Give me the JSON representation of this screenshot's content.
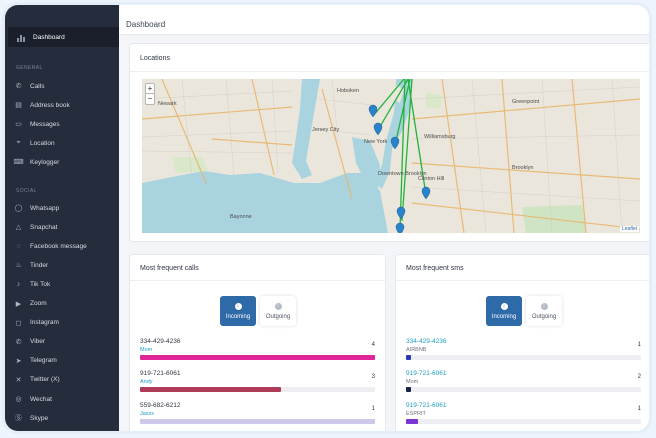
{
  "sidebar": {
    "active": "Dashboard",
    "general_label": "GENERAL",
    "social_label": "SOCIAL",
    "general_items": [
      {
        "label": "Calls",
        "icon": "phone-icon"
      },
      {
        "label": "Address book",
        "icon": "address-book-icon"
      },
      {
        "label": "Messages",
        "icon": "message-icon"
      },
      {
        "label": "Location",
        "icon": "location-pin-icon"
      },
      {
        "label": "Keylogger",
        "icon": "keyboard-icon"
      }
    ],
    "social_items": [
      {
        "label": "Whatsapp",
        "icon": "whatsapp-icon"
      },
      {
        "label": "Snapchat",
        "icon": "snapchat-icon"
      },
      {
        "label": "Facebook message",
        "icon": "messenger-icon"
      },
      {
        "label": "Tinder",
        "icon": "tinder-icon"
      },
      {
        "label": "Tik Tok",
        "icon": "tiktok-icon"
      },
      {
        "label": "Zoom",
        "icon": "zoom-icon"
      },
      {
        "label": "Instagram",
        "icon": "instagram-icon"
      },
      {
        "label": "Viber",
        "icon": "viber-icon"
      },
      {
        "label": "Telegram",
        "icon": "telegram-icon"
      },
      {
        "label": "Twitter (X)",
        "icon": "x-icon"
      },
      {
        "label": "Wechat",
        "icon": "wechat-icon"
      },
      {
        "label": "Skype",
        "icon": "skype-icon"
      }
    ]
  },
  "header": {
    "title": "Dashboard"
  },
  "locations": {
    "title": "Locations",
    "zoom_in": "+",
    "zoom_out": "−",
    "attribution": "Leaflet",
    "place_labels": [
      "Hoboken",
      "Newark",
      "Jersey City",
      "New York",
      "Bayonne",
      "Williamsburg",
      "Greenpoint",
      "Clinton Hill",
      "Downtown Brooklyn",
      "Brooklyn"
    ]
  },
  "calls": {
    "title": "Most frequent calls",
    "tab_incoming": "Incoming",
    "tab_outgoing": "Outgoing",
    "active_tab": "Incoming",
    "rows": [
      {
        "number": "334-429-4236",
        "name": "Mom",
        "count": "4",
        "fraction": 1.0,
        "color": "#e0259a"
      },
      {
        "number": "919-721-6061",
        "name": "Andy",
        "count": "3",
        "fraction": 0.6,
        "color": "#b03b58"
      },
      {
        "number": "559-682-6212",
        "name": "Jaxxx",
        "count": "1",
        "fraction": 1.0,
        "color": "#cfc8e8"
      }
    ]
  },
  "sms": {
    "title": "Most frequent sms",
    "tab_incoming": "Incoming",
    "tab_outgoing": "Outgoing",
    "active_tab": "Incoming",
    "rows": [
      {
        "number": "334-429-4236",
        "name": "AIRBNB",
        "count": "1",
        "fraction": 0.02,
        "color": "#2b39b8"
      },
      {
        "number": "919-721-6061",
        "name": "Mom",
        "count": "2",
        "fraction": 0.02,
        "color": "#16234a"
      },
      {
        "number": "919-721-6061",
        "name": "ESPRIT",
        "count": "1",
        "fraction": 0.05,
        "color": "#7a34d6"
      }
    ]
  },
  "colors": {
    "sidebar_bg": "#252c3c",
    "accent": "#2e6aa8",
    "link": "#1a9fc6",
    "route": "#22b33a",
    "marker": "#2a82cb"
  }
}
